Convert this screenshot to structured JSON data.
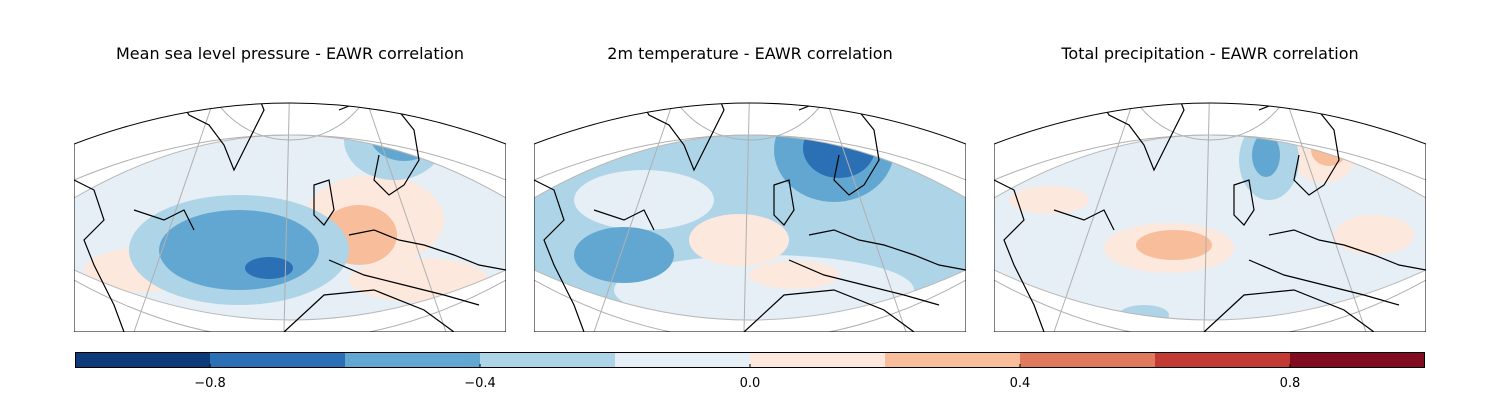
{
  "panels": [
    {
      "title": "Mean sea level pressure - EAWR correlation"
    },
    {
      "title": "2m temperature - EAWR correlation"
    },
    {
      "title": "Total precipitation - EAWR correlation"
    }
  ],
  "colorbar": {
    "min": -1.0,
    "max": 1.0,
    "levels": [
      -1.0,
      -0.8,
      -0.6,
      -0.4,
      -0.2,
      0.0,
      0.2,
      0.4,
      0.6,
      0.8,
      1.0
    ],
    "colors": [
      "#0b3b78",
      "#2b6fb4",
      "#62a7d2",
      "#add4e7",
      "#e6eef6",
      "#fce8dc",
      "#f8bd9b",
      "#e07a5c",
      "#c23a34",
      "#810c22"
    ],
    "ticks": [
      "−0.8",
      "−0.4",
      "0.0",
      "0.4",
      "0.8"
    ],
    "tick_values": [
      -0.8,
      -0.4,
      0.0,
      0.4,
      0.8
    ]
  }
}
